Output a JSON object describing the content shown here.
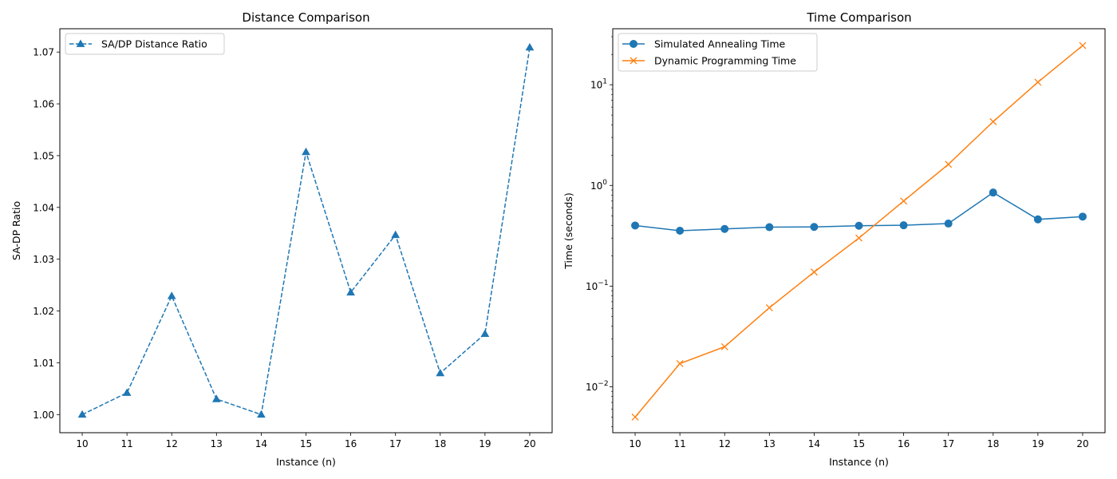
{
  "chart_data": [
    {
      "type": "line",
      "title": "Distance Comparison",
      "xlabel": "Instance (n)",
      "ylabel": "SA-DP Ratio",
      "x": [
        10,
        11,
        12,
        13,
        14,
        15,
        16,
        17,
        18,
        19,
        20
      ],
      "xlim": [
        9.5,
        20.5
      ],
      "ylim": [
        0.9965,
        1.0745
      ],
      "yticks": [
        1.0,
        1.01,
        1.02,
        1.03,
        1.04,
        1.05,
        1.06,
        1.07
      ],
      "ytick_labels": [
        "1.00",
        "1.01",
        "1.02",
        "1.03",
        "1.04",
        "1.05",
        "1.06",
        "1.07"
      ],
      "grid": false,
      "legend_position": "upper-left",
      "series": [
        {
          "name": "SA/DP Distance Ratio",
          "values": [
            1.0,
            1.0042,
            1.0229,
            1.003,
            1.0,
            1.0507,
            1.0236,
            1.0347,
            1.008,
            1.0156,
            1.0709
          ],
          "color": "#1f77b4",
          "marker": "triangle",
          "linestyle": "dashed"
        }
      ]
    },
    {
      "type": "line",
      "title": "Time Comparison",
      "xlabel": "Instance (n)",
      "ylabel": "Time (seconds)",
      "x": [
        10,
        11,
        12,
        13,
        14,
        15,
        16,
        17,
        18,
        19,
        20
      ],
      "xlim": [
        9.5,
        20.5
      ],
      "yscale": "log",
      "ylim": [
        0.0035,
        36
      ],
      "yticks": [
        0.01,
        0.1,
        1,
        10
      ],
      "ytick_labels": [
        {
          "base": "10",
          "exp": "−2"
        },
        {
          "base": "10",
          "exp": "−1"
        },
        {
          "base": "10",
          "exp": "0"
        },
        {
          "base": "10",
          "exp": "1"
        }
      ],
      "grid": false,
      "legend_position": "upper-left",
      "series": [
        {
          "name": "Simulated Annealing Time",
          "values": [
            0.4,
            0.355,
            0.37,
            0.385,
            0.387,
            0.398,
            0.402,
            0.418,
            0.85,
            0.46,
            0.49
          ],
          "color": "#1f77b4",
          "marker": "circle",
          "linestyle": "solid"
        },
        {
          "name": "Dynamic Programming Time",
          "values": [
            0.005,
            0.017,
            0.025,
            0.061,
            0.138,
            0.3,
            0.7,
            1.62,
            4.3,
            10.6,
            24.5
          ],
          "color": "#ff7f0e",
          "marker": "x",
          "linestyle": "solid"
        }
      ]
    }
  ]
}
